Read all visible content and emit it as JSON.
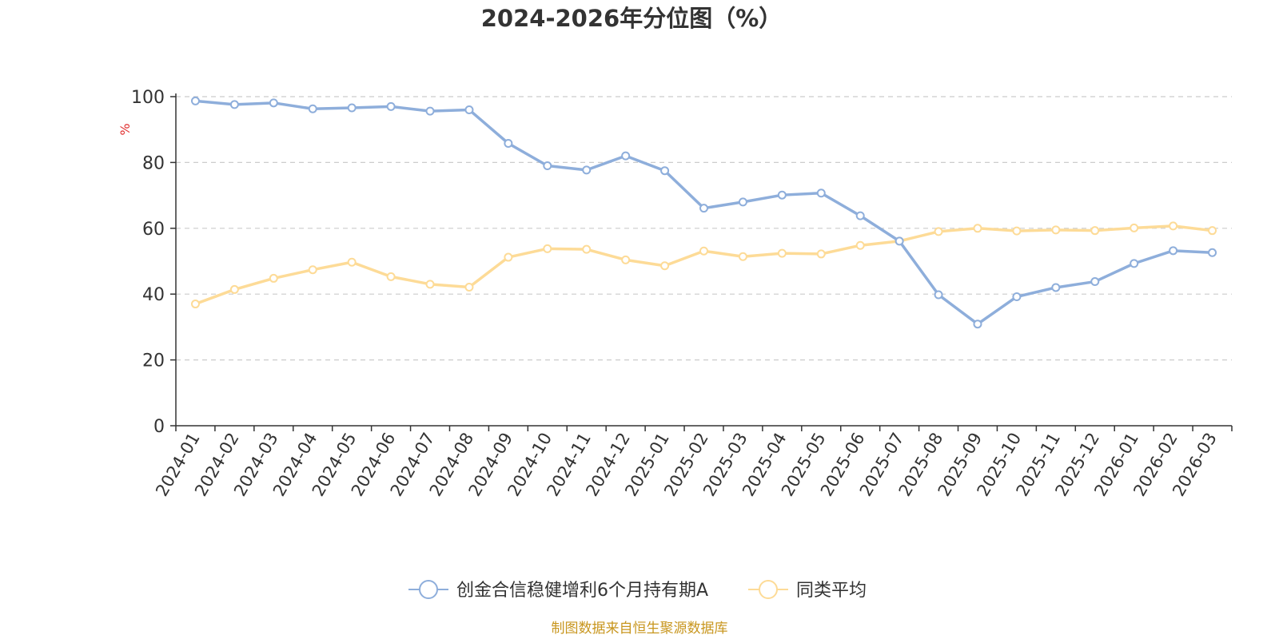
{
  "chart_data": {
    "type": "line",
    "title": "2024-2026年分位图（%）",
    "xlabel": "",
    "ylabel": "%",
    "ylim": [
      0,
      100
    ],
    "yticks": [
      0,
      20,
      40,
      60,
      80,
      100
    ],
    "grid": true,
    "legend_position": "bottom-center",
    "categories": [
      "2024-01",
      "2024-02",
      "2024-03",
      "2024-04",
      "2024-05",
      "2024-06",
      "2024-07",
      "2024-08",
      "2024-09",
      "2024-10",
      "2024-11",
      "2024-12",
      "2025-01",
      "2025-02",
      "2025-03",
      "2025-04",
      "2025-05",
      "2025-06",
      "2025-07",
      "2025-08",
      "2025-09",
      "2025-10",
      "2025-11",
      "2025-12",
      "2026-01",
      "2026-02",
      "2026-03"
    ],
    "series": [
      {
        "name": "创金合信稳健增利6个月持有期A",
        "color": "#8eaedb",
        "values": [
          98.7,
          97.6,
          98.1,
          96.3,
          96.6,
          97.0,
          95.6,
          96.0,
          85.8,
          79.0,
          77.7,
          82.0,
          77.5,
          66.1,
          68.0,
          70.1,
          70.7,
          63.8,
          56.1,
          39.8,
          30.9,
          39.2,
          42.0,
          43.8,
          49.3,
          53.2,
          52.6
        ]
      },
      {
        "name": "同类平均",
        "color": "#fddb97",
        "values": [
          37.0,
          41.4,
          44.8,
          47.4,
          49.7,
          45.3,
          43.0,
          42.1,
          51.2,
          53.8,
          53.6,
          50.4,
          48.6,
          53.1,
          51.4,
          52.4,
          52.2,
          54.8,
          56.1,
          59.0,
          60.0,
          59.2,
          59.5,
          59.3,
          60.1,
          60.7,
          59.3
        ]
      }
    ],
    "source": "制图数据来自恒生聚源数据库"
  }
}
